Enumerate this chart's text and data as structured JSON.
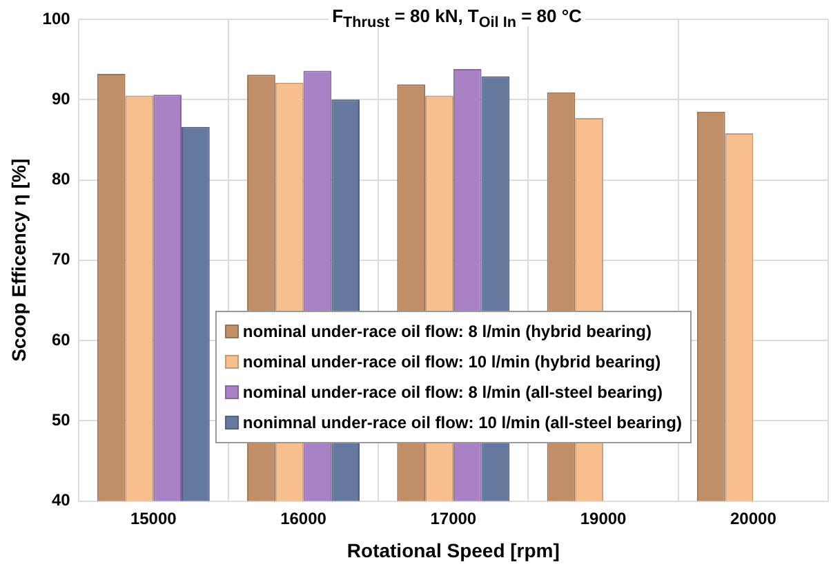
{
  "chart_data": {
    "type": "bar",
    "title": "F$_{Thrust}$ = 80 kN, T$_{Oil In}$ = 80 °C",
    "xlabel": "Rotational Speed [rpm]",
    "ylabel": "Scoop Efficency η [%]",
    "categories": [
      "15000",
      "16000",
      "17000",
      "19000",
      "20000"
    ],
    "series": [
      {
        "name": "nominal under-race oil flow: 8 l/min (hybrid bearing)",
        "color": "#c08f68",
        "values": [
          93.2,
          93.1,
          91.9,
          90.9,
          88.5
        ]
      },
      {
        "name": "nominal under-race oil flow: 10 l/min (hybrid bearing)",
        "color": "#f8bf8e",
        "values": [
          90.5,
          92.1,
          90.5,
          87.7,
          85.8
        ]
      },
      {
        "name": "nominal under-race oil flow: 8 l/min (all-steel bearing)",
        "color": "#a882c4",
        "values": [
          90.6,
          93.6,
          93.8,
          null,
          null
        ]
      },
      {
        "name": "nonimnal under-race oil flow: 10 l/min (all-steel bearing)",
        "color": "#65799f",
        "values": [
          86.6,
          90.0,
          92.9,
          null,
          null
        ]
      }
    ],
    "ylim": [
      40,
      100
    ],
    "yticks": [
      40,
      50,
      60,
      70,
      80,
      90,
      100
    ],
    "grid": true,
    "legend": "bottom"
  }
}
